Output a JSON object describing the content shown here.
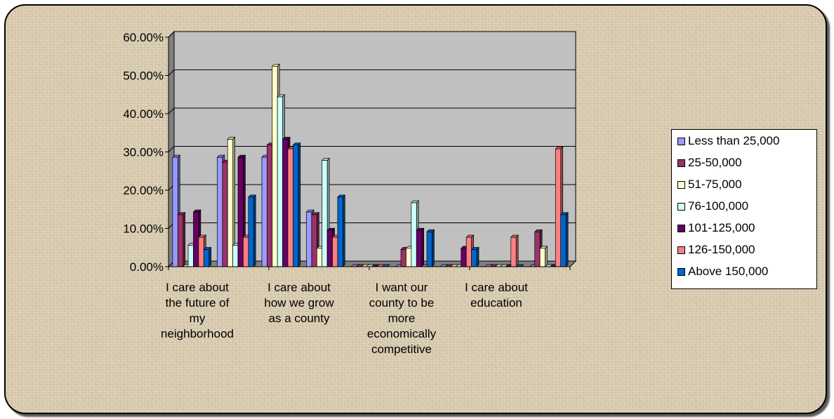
{
  "chart_data": {
    "type": "bar",
    "title": "",
    "xlabel": "",
    "ylabel": "",
    "ylim": [
      0,
      0.6
    ],
    "y_ticks": [
      "0.00%",
      "10.00%",
      "20.00%",
      "30.00%",
      "40.00%",
      "50.00%",
      "60.00%"
    ],
    "categories": [
      "I care about the future of my neighborhood",
      "I care about how we grow as a county",
      "I want our county to be more economically competitive",
      "I care about education",
      ""
    ],
    "category_label_lines": [
      [
        "I care about",
        "the future of",
        "my",
        "neighborhood"
      ],
      [
        "I care about",
        "how we grow",
        "as a county"
      ],
      [
        "I want our",
        "county to be",
        "more",
        "economically",
        "competitive"
      ],
      [
        "I care about",
        "education"
      ],
      []
    ],
    "series": [
      {
        "name": "Less than 25,000",
        "color": "#9999ff",
        "values": [
          0.286,
          0.286,
          0.286,
          0.143,
          0.0
        ]
      },
      {
        "name": "25-50,000",
        "color": "#993366",
        "values": [
          0.136,
          0.273,
          0.318,
          0.136,
          0.0
        ]
      },
      {
        "name": "51-75,000",
        "color": "#ffffcc",
        "values": [
          0.0,
          0.333,
          0.524,
          0.048,
          0.0
        ]
      },
      {
        "name": "76-100,000",
        "color": "#ccffff",
        "values": [
          0.056,
          0.056,
          0.444,
          0.278,
          0.0
        ]
      },
      {
        "name": "101-125,000",
        "color": "#660066",
        "values": [
          0.143,
          0.286,
          0.333,
          0.095,
          0.0
        ]
      },
      {
        "name": "126-150,000",
        "color": "#ff8080",
        "values": [
          0.077,
          0.077,
          0.308,
          0.077,
          0.0
        ]
      },
      {
        "name": "Above 150,000",
        "color": "#0066cc",
        "values": [
          0.045,
          0.182,
          0.318,
          0.182,
          0.0
        ]
      }
    ],
    "extra_groups_values": [
      [
        0.0,
        0.045,
        0.048,
        0.167,
        0.095,
        0.0,
        0.091
      ],
      [
        0.0,
        0.0,
        0.0,
        0.0,
        0.048,
        0.077,
        0.045
      ],
      [
        0.0,
        0.0,
        0.0,
        0.0,
        0.0,
        0.077,
        0.0
      ],
      [
        0.0,
        0.091,
        0.048,
        0.0,
        0.0,
        0.308,
        0.136
      ]
    ],
    "grid": true,
    "legend_position": "right",
    "plot_background": "#c0c0c0"
  }
}
